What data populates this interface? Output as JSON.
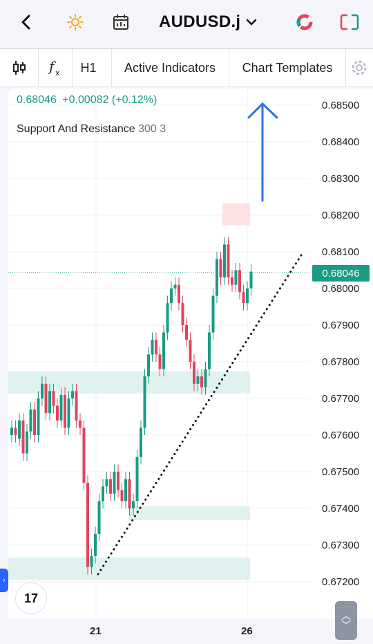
{
  "header": {
    "back_icon": "chevron-left-icon",
    "theme_icon": "sun-icon",
    "calendar_icon": "calendar-icon",
    "symbol": "AUDUSD.j",
    "symbol_dropdown_icon": "chevron-down-icon",
    "app_icon_1": "ring-logo-icon",
    "app_icon_2": "bracket-logo-icon"
  },
  "toolbar": {
    "candles_icon": "candlestick-icon",
    "fx_icon": "function-icon",
    "timeframe": "H1",
    "indicators": "Active Indicators",
    "templates": "Chart Templates",
    "settings_icon": "gear-icon"
  },
  "legend": {
    "price": "0.68046",
    "change": "+0.00082 (+0.12%)",
    "indicator_name": "Support And Resistance",
    "indicator_params": "300 3"
  },
  "price_axis": [
    "0.68500",
    "0.68400",
    "0.68300",
    "0.68200",
    "0.68100",
    "0.68000",
    "0.67900",
    "0.67800",
    "0.67700",
    "0.67600",
    "0.67500",
    "0.67400",
    "0.67300",
    "0.67200"
  ],
  "current_price": "0.68046",
  "time_axis": [
    "21",
    "26"
  ],
  "colors": {
    "up": "#1a9b84",
    "down": "#e0455c",
    "support_zone": "#dff2ef",
    "resistance_zone": "#fde2e2",
    "arrow": "#2f6ee0"
  },
  "logo_text": "17",
  "scroll_icons": [
    "chevron-up-icon",
    "chevron-down-icon"
  ]
}
